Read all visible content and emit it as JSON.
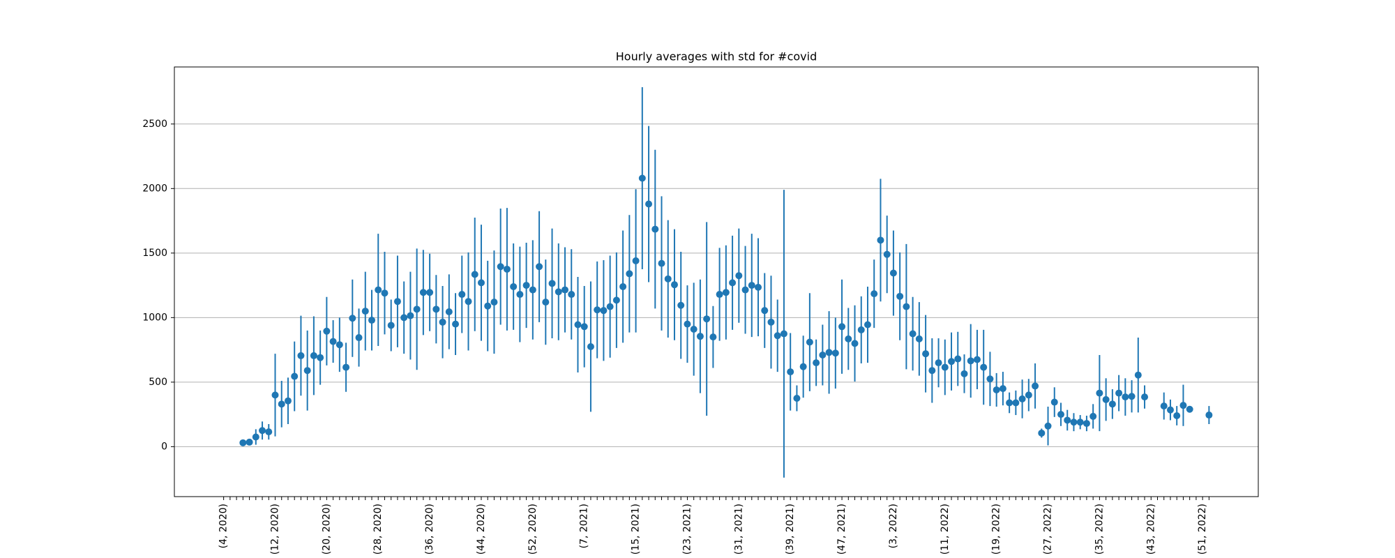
{
  "chart_data": {
    "type": "errorbar",
    "title": "Hourly averages with std for #covid",
    "categories": [
      "(4, 2020)",
      null,
      null,
      null,
      null,
      null,
      null,
      null,
      "(12, 2020)",
      null,
      null,
      null,
      null,
      null,
      null,
      null,
      "(20, 2020)",
      null,
      null,
      null,
      null,
      null,
      null,
      null,
      "(28, 2020)",
      null,
      null,
      null,
      null,
      null,
      null,
      null,
      "(36, 2020)",
      null,
      null,
      null,
      null,
      null,
      null,
      null,
      "(44, 2020)",
      null,
      null,
      null,
      null,
      null,
      null,
      null,
      "(52, 2020)",
      null,
      null,
      null,
      null,
      null,
      null,
      null,
      "(7, 2021)",
      null,
      null,
      null,
      null,
      null,
      null,
      null,
      "(15, 2021)",
      null,
      null,
      null,
      null,
      null,
      null,
      null,
      "(23, 2021)",
      null,
      null,
      null,
      null,
      null,
      null,
      null,
      "(31, 2021)",
      null,
      null,
      null,
      null,
      null,
      null,
      null,
      "(39, 2021)",
      null,
      null,
      null,
      null,
      null,
      null,
      null,
      "(47, 2021)",
      null,
      null,
      null,
      null,
      null,
      null,
      null,
      "(3, 2022)",
      null,
      null,
      null,
      null,
      null,
      null,
      null,
      "(11, 2022)",
      null,
      null,
      null,
      null,
      null,
      null,
      null,
      "(19, 2022)",
      null,
      null,
      null,
      null,
      null,
      null,
      null,
      "(27, 2022)",
      null,
      null,
      null,
      null,
      null,
      null,
      null,
      "(35, 2022)",
      null,
      null,
      null,
      null,
      null,
      null,
      null,
      "(43, 2022)",
      null,
      null,
      null,
      null,
      null,
      null,
      null,
      "(51, 2022)",
      null
    ],
    "values": [
      null,
      null,
      null,
      30,
      35,
      75,
      125,
      115,
      400,
      330,
      355,
      545,
      705,
      590,
      705,
      690,
      895,
      815,
      790,
      615,
      995,
      845,
      1050,
      980,
      1215,
      1190,
      940,
      1125,
      1000,
      1015,
      1065,
      1195,
      1195,
      1065,
      965,
      1045,
      950,
      1180,
      1125,
      1335,
      1270,
      1090,
      1120,
      1395,
      1375,
      1240,
      1180,
      1250,
      1215,
      1395,
      1120,
      1265,
      1200,
      1215,
      1180,
      945,
      930,
      775,
      1060,
      1055,
      1085,
      1135,
      1240,
      1340,
      1440,
      2080,
      1880,
      1685,
      1420,
      1300,
      1255,
      1095,
      950,
      910,
      855,
      990,
      850,
      1180,
      1195,
      1270,
      1325,
      1215,
      1250,
      1235,
      1055,
      965,
      860,
      875,
      580,
      375,
      620,
      810,
      650,
      710,
      730,
      725,
      930,
      835,
      800,
      905,
      945,
      1185,
      1600,
      1490,
      1345,
      1165,
      1085,
      875,
      835,
      720,
      590,
      650,
      615,
      660,
      680,
      565,
      665,
      675,
      615,
      525,
      440,
      450,
      340,
      340,
      370,
      400,
      470,
      105,
      160,
      345,
      250,
      205,
      190,
      190,
      180,
      235,
      415,
      365,
      330,
      415,
      385,
      390,
      555,
      385,
      null,
      null,
      315,
      285,
      240,
      320,
      290,
      null,
      null,
      245
    ],
    "errors": [
      null,
      null,
      null,
      10,
      15,
      60,
      70,
      60,
      320,
      180,
      180,
      270,
      310,
      310,
      305,
      210,
      265,
      165,
      210,
      190,
      300,
      225,
      305,
      235,
      435,
      320,
      200,
      355,
      280,
      340,
      470,
      330,
      300,
      265,
      280,
      290,
      240,
      300,
      380,
      440,
      450,
      350,
      400,
      450,
      475,
      335,
      370,
      330,
      385,
      430,
      330,
      425,
      375,
      330,
      350,
      370,
      315,
      505,
      375,
      390,
      395,
      370,
      435,
      455,
      555,
      705,
      605,
      615,
      520,
      455,
      430,
      415,
      300,
      360,
      440,
      750,
      240,
      360,
      365,
      365,
      365,
      340,
      400,
      380,
      290,
      360,
      280,
      1115,
      300,
      100,
      240,
      380,
      180,
      235,
      320,
      275,
      365,
      240,
      295,
      260,
      295,
      265,
      475,
      300,
      330,
      340,
      485,
      285,
      285,
      300,
      250,
      190,
      215,
      225,
      210,
      150,
      285,
      230,
      290,
      210,
      130,
      130,
      80,
      95,
      150,
      125,
      175,
      35,
      150,
      115,
      90,
      80,
      70,
      55,
      60,
      95,
      295,
      165,
      115,
      140,
      145,
      125,
      290,
      90,
      null,
      null,
      105,
      80,
      75,
      160,
      15,
      null,
      null,
      70
    ],
    "color": "#1f77b4",
    "ylim": [
      -387,
      2942
    ],
    "yticks": [
      0,
      500,
      1000,
      1500,
      2000,
      2500
    ],
    "grid": true
  }
}
